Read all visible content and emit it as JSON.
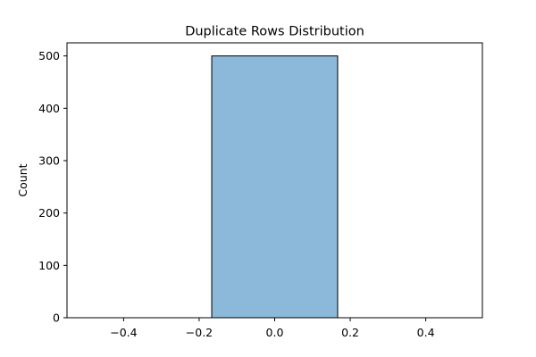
{
  "chart_data": {
    "type": "bar",
    "title": "Duplicate Rows Distribution",
    "xlabel": "",
    "ylabel": "Count",
    "xlim": [
      -0.55,
      0.55
    ],
    "ylim": [
      0,
      525
    ],
    "xticks": [
      -0.4,
      -0.2,
      0.0,
      0.2,
      0.4
    ],
    "xtick_labels": [
      "−0.4",
      "−0.2",
      "0.0",
      "0.2",
      "0.4"
    ],
    "yticks": [
      0,
      100,
      200,
      300,
      400,
      500
    ],
    "ytick_labels": [
      "0",
      "100",
      "200",
      "300",
      "400",
      "500"
    ],
    "bins": [
      {
        "x0": -0.5,
        "x1": -0.1667,
        "count": 0
      },
      {
        "x0": -0.1667,
        "x1": 0.1667,
        "count": 500
      },
      {
        "x0": 0.1667,
        "x1": 0.5,
        "count": 0
      }
    ],
    "bar_fill": "#8cb8da",
    "bar_edge": "#000000",
    "grid": false
  }
}
